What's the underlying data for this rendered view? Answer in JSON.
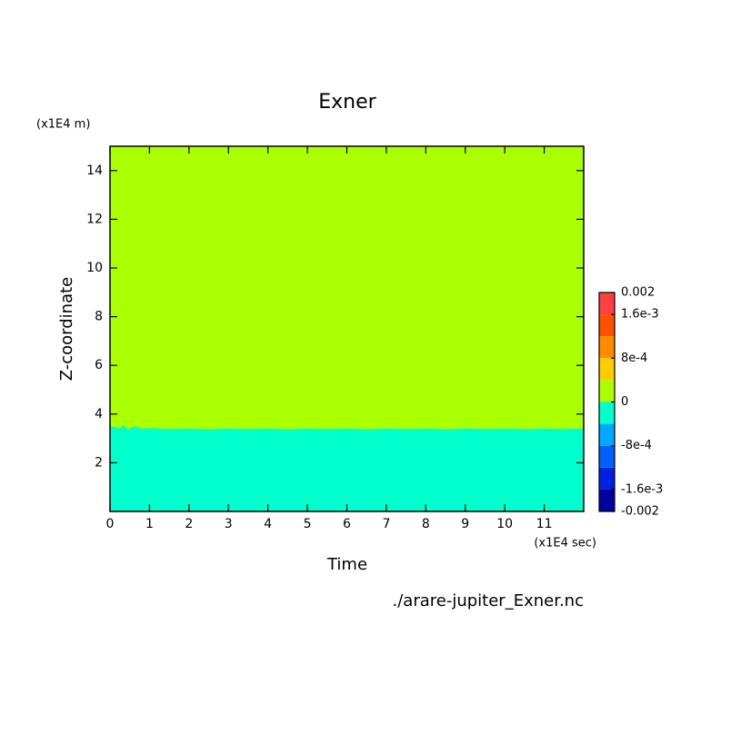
{
  "chart_data": {
    "type": "contourf",
    "title": "Exner",
    "xlabel": "Time",
    "ylabel": "Z-coordinate",
    "x_unit": "(x1E4 sec)",
    "y_unit": "(x1E4 m)",
    "footnote": "./arare-jupiter_Exner.nc",
    "xlim": [
      0,
      12
    ],
    "xticks": [
      0,
      1,
      2,
      3,
      4,
      5,
      6,
      7,
      8,
      9,
      10,
      11
    ],
    "ylim": [
      0,
      15
    ],
    "yticks": [
      2,
      4,
      6,
      8,
      10,
      12,
      14
    ],
    "boundary_x": [
      0,
      0.15,
      0.25,
      0.35,
      0.45,
      0.6,
      0.8,
      1.0,
      1.5,
      2,
      2.5,
      3,
      3.5,
      4,
      4.5,
      5,
      5.5,
      6,
      6.5,
      7,
      7.5,
      8,
      8.5,
      9,
      9.5,
      10,
      10.5,
      11,
      11.5,
      12
    ],
    "boundary_z": [
      3.5,
      3.45,
      3.4,
      3.55,
      3.35,
      3.5,
      3.4,
      3.42,
      3.38,
      3.4,
      3.37,
      3.4,
      3.38,
      3.4,
      3.37,
      3.4,
      3.38,
      3.4,
      3.37,
      3.4,
      3.38,
      3.4,
      3.37,
      3.4,
      3.38,
      3.4,
      3.37,
      3.4,
      3.38,
      3.4
    ],
    "field_below": -0.0002,
    "field_above": 0.0002,
    "levels": [
      -0.002,
      -0.0016,
      -0.0012,
      -0.0008,
      -0.0004,
      0,
      0.0004,
      0.0008,
      0.0012,
      0.0016,
      0.002
    ],
    "colors": [
      "#0000a0",
      "#0020e0",
      "#0060ff",
      "#00a8ff",
      "#00ffcc",
      "#aaff00",
      "#ffcc00",
      "#ff8c00",
      "#ff5000",
      "#ff4040"
    ],
    "colorbar_ticks": [
      {
        "value": -0.002,
        "label": "-0.002"
      },
      {
        "value": -0.0016,
        "label": "-1.6e-3"
      },
      {
        "value": -0.0008,
        "label": "-8e-4"
      },
      0,
      {
        "value": 0.0008,
        "label": "8e-4"
      },
      {
        "value": 0.0016,
        "label": "1.6e-3"
      },
      0.002
    ]
  }
}
